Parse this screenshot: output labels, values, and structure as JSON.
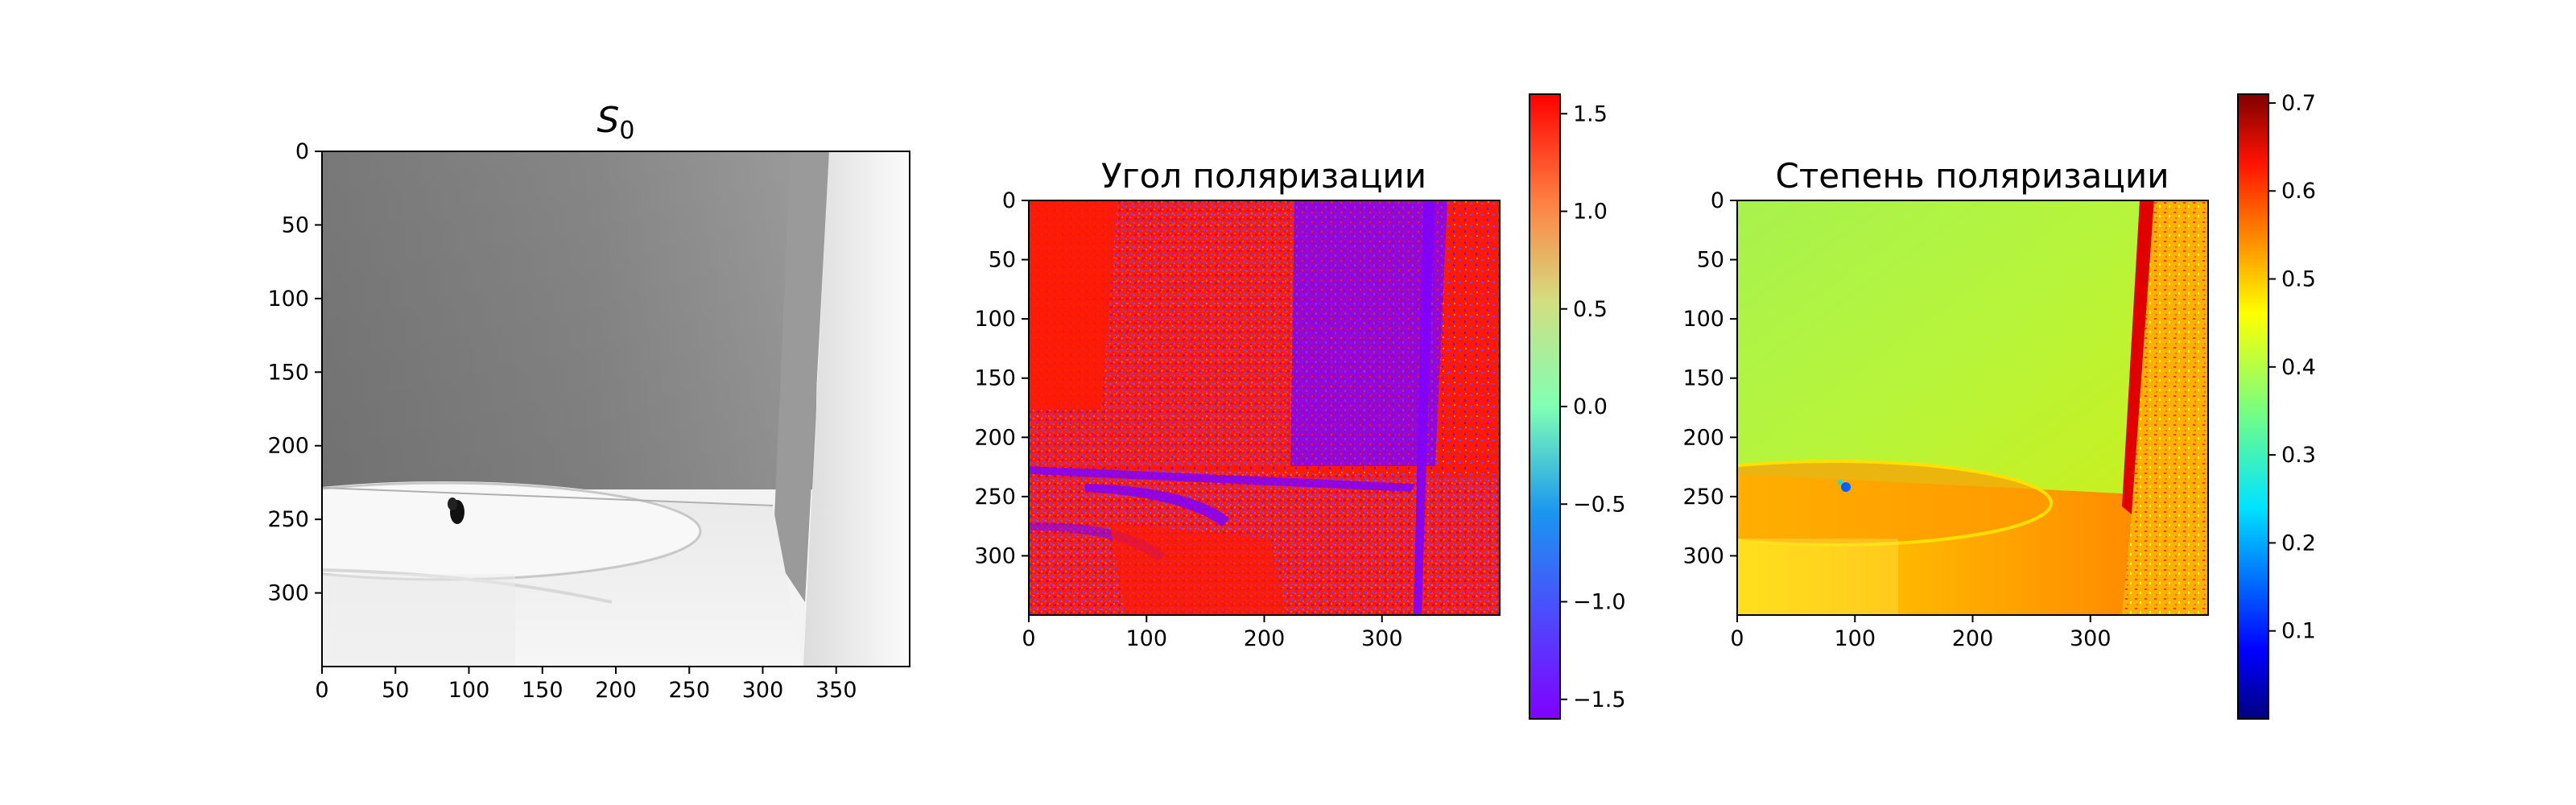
{
  "figure": {
    "background": "#ffffff"
  },
  "chart_data": [
    {
      "type": "heatmap",
      "title": "S",
      "title_subscript": "0",
      "colormap": "gray",
      "x_ticks": [
        0,
        50,
        100,
        150,
        200,
        250,
        300,
        350
      ],
      "y_ticks": [
        0,
        50,
        100,
        150,
        200,
        250,
        300
      ],
      "xlim": [
        0,
        400
      ],
      "ylim": [
        350,
        0
      ],
      "y_inverted": true,
      "regions": [
        {
          "name": "wall",
          "x": [
            0,
            320
          ],
          "y": [
            0,
            230
          ],
          "intensity": 0.45
        },
        {
          "name": "side-wall",
          "x": [
            320,
            400
          ],
          "y": [
            0,
            350
          ],
          "intensity": 0.96
        },
        {
          "name": "floor",
          "x": [
            0,
            320
          ],
          "y": [
            230,
            350
          ],
          "intensity": 0.93
        }
      ],
      "dark_spot": {
        "x": 92,
        "y": 245
      }
    },
    {
      "type": "heatmap",
      "title": "Угол поляризации",
      "colormap": "rainbow",
      "x_ticks": [
        0,
        100,
        200,
        300
      ],
      "y_ticks": [
        0,
        50,
        100,
        150,
        200,
        250,
        300
      ],
      "xlim": [
        0,
        400
      ],
      "ylim": [
        350,
        0
      ],
      "y_inverted": true,
      "colorbar": {
        "range": [
          -1.6,
          1.6
        ],
        "ticks": [
          "1.5",
          "1.0",
          "0.5",
          "0.0",
          "−0.5",
          "−1.0",
          "−1.5"
        ],
        "tick_values": [
          1.5,
          1.0,
          0.5,
          0.0,
          -0.5,
          -1.0,
          -1.5
        ],
        "colors": [
          "#ff0000",
          "#ff7f41",
          "#d4dd80",
          "#80ffb4",
          "#2adddd",
          "#2b7ff6",
          "#8000ff"
        ]
      },
      "dominant_values": {
        "red": 1.57,
        "violet": -1.57
      }
    },
    {
      "type": "heatmap",
      "title": "Степень поляризации",
      "colormap": "jet",
      "x_ticks": [
        0,
        100,
        200,
        300
      ],
      "y_ticks": [
        0,
        50,
        100,
        150,
        200,
        250,
        300
      ],
      "xlim": [
        0,
        400
      ],
      "ylim": [
        350,
        0
      ],
      "y_inverted": true,
      "colorbar": {
        "range": [
          0.0,
          0.71
        ],
        "ticks": [
          "0.7",
          "0.6",
          "0.5",
          "0.4",
          "0.3",
          "0.2",
          "0.1"
        ],
        "tick_values": [
          0.7,
          0.6,
          0.5,
          0.4,
          0.3,
          0.2,
          0.1
        ],
        "colors": [
          "#7f0000",
          "#ff0000",
          "#ff7a00",
          "#ffff00",
          "#7dff7a",
          "#00e4ff",
          "#0060ff",
          "#0000cc",
          "#00007f"
        ]
      },
      "regions": [
        {
          "name": "wall",
          "value": 0.43
        },
        {
          "name": "floor",
          "value": 0.55
        },
        {
          "name": "side-wall",
          "value": 0.58
        }
      ]
    }
  ]
}
